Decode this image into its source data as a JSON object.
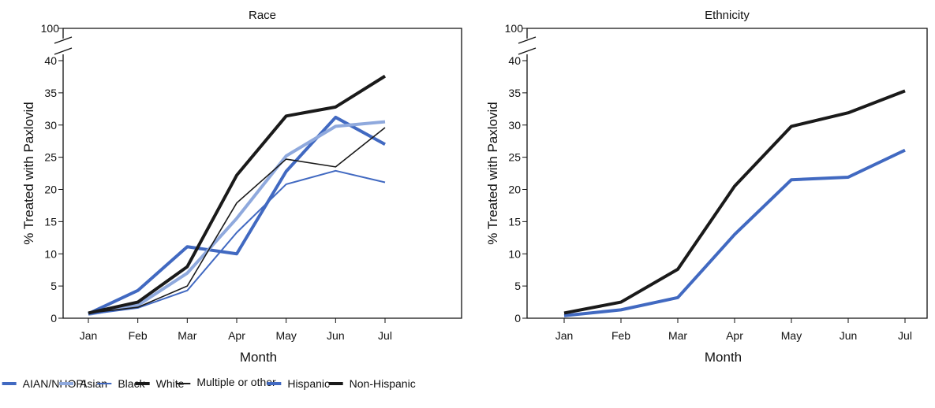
{
  "chart_data": [
    {
      "type": "line",
      "title": "Race",
      "xlabel": "Month",
      "ylabel": "% Treated with Paxlovid",
      "ylim": [
        0,
        40
      ],
      "y_break_top_tick": 100,
      "yticks": [
        0,
        5,
        10,
        15,
        20,
        25,
        30,
        35,
        40
      ],
      "categories": [
        "Jan",
        "Feb",
        "Mar",
        "Apr",
        "May",
        "Jun",
        "Jul"
      ],
      "grid": false,
      "legend_placement": "bottom",
      "series": [
        {
          "name": "AIAN/NHOPI",
          "color": "#4169c1",
          "values": [
            0.7,
            4.3,
            11.1,
            10.0,
            22.8,
            31.2,
            27.0
          ]
        },
        {
          "name": "Asian",
          "color": "#8fa9dd",
          "values": [
            0.6,
            2.0,
            7.0,
            15.5,
            25.2,
            29.8,
            30.5
          ]
        },
        {
          "name": "Black",
          "color": "#4169c1",
          "values": [
            0.6,
            1.6,
            4.3,
            13.3,
            20.8,
            22.9,
            21.1
          ]
        },
        {
          "name": "White",
          "color": "#1a1a1a",
          "values": [
            0.8,
            2.5,
            8.0,
            22.2,
            31.4,
            32.8,
            37.6
          ]
        },
        {
          "name": "Multiple or other",
          "color": "#1a1a1a",
          "values": [
            0.8,
            1.7,
            5.0,
            17.9,
            24.7,
            23.5,
            29.6
          ]
        }
      ]
    },
    {
      "type": "line",
      "title": "Ethnicity",
      "xlabel": "Month",
      "ylabel": "% Treated with Paxlovid",
      "ylim": [
        0,
        40
      ],
      "y_break_top_tick": 100,
      "yticks": [
        0,
        5,
        10,
        15,
        20,
        25,
        30,
        35,
        40
      ],
      "categories": [
        "Jan",
        "Feb",
        "Mar",
        "Apr",
        "May",
        "Jun",
        "Jul"
      ],
      "grid": false,
      "legend_placement": "bottom",
      "series": [
        {
          "name": "Hispanic",
          "color": "#4169c1",
          "values": [
            0.4,
            1.3,
            3.2,
            13.0,
            21.5,
            21.9,
            26.1
          ]
        },
        {
          "name": "Non-Hispanic",
          "color": "#1a1a1a",
          "values": [
            0.8,
            2.5,
            7.6,
            20.5,
            29.8,
            31.9,
            35.3
          ]
        }
      ]
    }
  ]
}
